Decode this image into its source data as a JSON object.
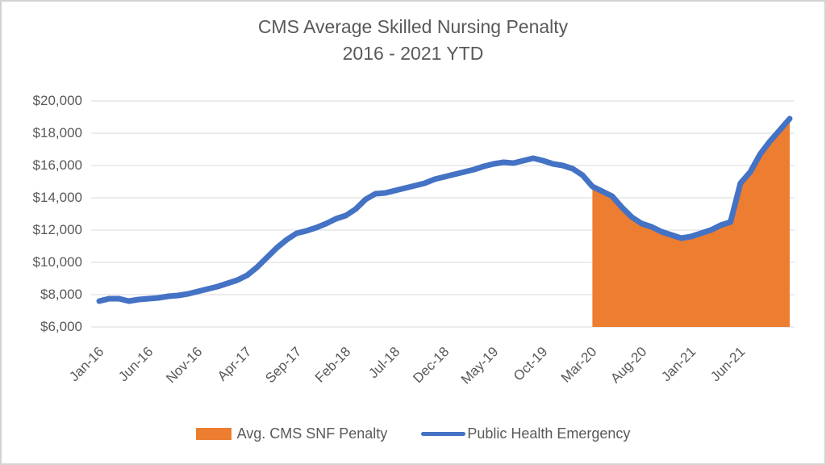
{
  "title": {
    "line1": "CMS Average Skilled Nursing Penalty",
    "line2": "2016 - 2021 YTD"
  },
  "legend": [
    {
      "label": "Avg. CMS SNF Penalty",
      "swatch": "area-swatch",
      "color": "#ED7D31"
    },
    {
      "label": "Public Health Emergency",
      "swatch": "line-swatch",
      "color": "#4472C4"
    }
  ],
  "colors": {
    "line": "#4472C4",
    "area": "#ED7D31",
    "text": "#595959",
    "gridline": "#D9D9D9"
  },
  "chart_data": {
    "type": "line",
    "title": "CMS Average Skilled Nursing Penalty 2016 - 2021 YTD",
    "xlabel": "",
    "ylabel": "",
    "ylim": [
      6000,
      20000
    ],
    "grid": "horizontal",
    "legend_position": "bottom",
    "x": [
      "Jan-16",
      "Feb-16",
      "Mar-16",
      "Apr-16",
      "May-16",
      "Jun-16",
      "Jul-16",
      "Aug-16",
      "Sep-16",
      "Oct-16",
      "Nov-16",
      "Dec-16",
      "Jan-17",
      "Feb-17",
      "Mar-17",
      "Apr-17",
      "May-17",
      "Jun-17",
      "Jul-17",
      "Aug-17",
      "Sep-17",
      "Oct-17",
      "Nov-17",
      "Dec-17",
      "Jan-18",
      "Feb-18",
      "Mar-18",
      "Apr-18",
      "May-18",
      "Jun-18",
      "Jul-18",
      "Aug-18",
      "Sep-18",
      "Oct-18",
      "Nov-18",
      "Dec-18",
      "Jan-19",
      "Feb-19",
      "Mar-19",
      "Apr-19",
      "May-19",
      "Jun-19",
      "Jul-19",
      "Aug-19",
      "Sep-19",
      "Oct-19",
      "Nov-19",
      "Dec-19",
      "Jan-20",
      "Feb-20",
      "Mar-20",
      "Apr-20",
      "May-20",
      "Jun-20",
      "Jul-20",
      "Aug-20",
      "Sep-20",
      "Oct-20",
      "Nov-20",
      "Dec-20",
      "Jan-21",
      "Feb-21",
      "Mar-21",
      "Apr-21",
      "May-21",
      "Jun-21",
      "Jul-21",
      "Aug-21",
      "Sep-21",
      "Oct-21",
      "Nov-21"
    ],
    "x_tick_labels": [
      "Jan-16",
      "Jun-16",
      "Nov-16",
      "Apr-17",
      "Sep-17",
      "Feb-18",
      "Jul-18",
      "Dec-18",
      "May-19",
      "Oct-19",
      "Mar-20",
      "Aug-20",
      "Jan-21",
      "Jun-21"
    ],
    "x_tick_step": 5,
    "y_ticks": [
      {
        "label": "$20,000",
        "value": 20000
      },
      {
        "label": "$18,000",
        "value": 18000
      },
      {
        "label": "$16,000",
        "value": 16000
      },
      {
        "label": "$14,000",
        "value": 14000
      },
      {
        "label": "$12,000",
        "value": 12000
      },
      {
        "label": "$10,000",
        "value": 10000
      },
      {
        "label": "$8,000",
        "value": 8000
      },
      {
        "label": "$6,000",
        "value": 6000
      }
    ],
    "series": [
      {
        "name": "Public Health Emergency",
        "type": "line",
        "color": "#4472C4",
        "values": [
          7600,
          7750,
          7750,
          7600,
          7700,
          7750,
          7800,
          7900,
          7950,
          8050,
          8200,
          8350,
          8500,
          8700,
          8900,
          9200,
          9700,
          10300,
          10900,
          11400,
          11800,
          11950,
          12150,
          12400,
          12700,
          12900,
          13300,
          13900,
          14250,
          14300,
          14450,
          14600,
          14750,
          14900,
          15150,
          15300,
          15450,
          15600,
          15750,
          15950,
          16100,
          16200,
          16150,
          16300,
          16450,
          16300,
          16100,
          16000,
          15800,
          15400,
          14700,
          14400,
          14100,
          13400,
          12800,
          12400,
          12200,
          11900,
          11700,
          11500,
          11600,
          11800,
          12000,
          12300,
          12500,
          14900,
          15600,
          16700,
          17500,
          18200,
          18900
        ]
      },
      {
        "name": "Avg. CMS SNF Penalty",
        "type": "area",
        "color": "#ED7D31",
        "start_index": 50,
        "x_start": "Mar-20",
        "x_end": "Nov-21",
        "values": [
          14700,
          14400,
          14100,
          13400,
          12800,
          12400,
          12200,
          11900,
          11700,
          11500,
          11600,
          11800,
          12000,
          12300,
          12500,
          14900,
          15600,
          16700,
          17500,
          18200,
          18900
        ]
      }
    ]
  }
}
